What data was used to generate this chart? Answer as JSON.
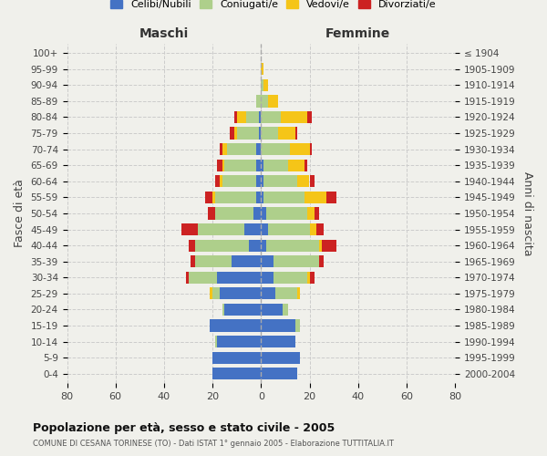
{
  "age_groups": [
    "0-4",
    "5-9",
    "10-14",
    "15-19",
    "20-24",
    "25-29",
    "30-34",
    "35-39",
    "40-44",
    "45-49",
    "50-54",
    "55-59",
    "60-64",
    "65-69",
    "70-74",
    "75-79",
    "80-84",
    "85-89",
    "90-94",
    "95-99",
    "100+"
  ],
  "birth_years": [
    "2000-2004",
    "1995-1999",
    "1990-1994",
    "1985-1989",
    "1980-1984",
    "1975-1979",
    "1970-1974",
    "1965-1969",
    "1960-1964",
    "1955-1959",
    "1950-1954",
    "1945-1949",
    "1940-1944",
    "1935-1939",
    "1930-1934",
    "1925-1929",
    "1920-1924",
    "1915-1919",
    "1910-1914",
    "1905-1909",
    "≤ 1904"
  ],
  "males": {
    "celibi": [
      20,
      20,
      18,
      21,
      15,
      17,
      18,
      12,
      5,
      7,
      3,
      2,
      2,
      2,
      2,
      1,
      1,
      0,
      0,
      0,
      0
    ],
    "coniugati": [
      0,
      0,
      1,
      0,
      1,
      3,
      12,
      15,
      22,
      19,
      16,
      17,
      14,
      13,
      12,
      9,
      5,
      2,
      0,
      0,
      0
    ],
    "vedovi": [
      0,
      0,
      0,
      0,
      0,
      1,
      0,
      0,
      0,
      0,
      0,
      1,
      1,
      1,
      2,
      1,
      4,
      0,
      0,
      0,
      0
    ],
    "divorziati": [
      0,
      0,
      0,
      0,
      0,
      0,
      1,
      2,
      3,
      7,
      3,
      3,
      2,
      2,
      1,
      2,
      1,
      0,
      0,
      0,
      0
    ]
  },
  "females": {
    "nubili": [
      15,
      16,
      14,
      14,
      9,
      6,
      5,
      5,
      2,
      3,
      2,
      1,
      1,
      1,
      0,
      0,
      0,
      0,
      0,
      0,
      0
    ],
    "coniugate": [
      0,
      0,
      0,
      2,
      2,
      9,
      14,
      19,
      22,
      17,
      17,
      17,
      14,
      10,
      12,
      7,
      8,
      3,
      1,
      0,
      0
    ],
    "vedove": [
      0,
      0,
      0,
      0,
      0,
      1,
      1,
      0,
      1,
      3,
      3,
      9,
      5,
      7,
      8,
      7,
      11,
      4,
      2,
      1,
      0
    ],
    "divorziate": [
      0,
      0,
      0,
      0,
      0,
      0,
      2,
      2,
      6,
      3,
      2,
      4,
      2,
      1,
      1,
      1,
      2,
      0,
      0,
      0,
      0
    ]
  },
  "colors": {
    "celibi": "#4472C4",
    "coniugati": "#AECF8B",
    "vedovi": "#F5C518",
    "divorziati": "#CC2222"
  },
  "xlim": 80,
  "title": "Popolazione per età, sesso e stato civile - 2005",
  "subtitle": "COMUNE DI CESANA TORINESE (TO) - Dati ISTAT 1° gennaio 2005 - Elaborazione TUTTITALIA.IT",
  "ylabel_left": "Fasce di età",
  "ylabel_right": "Anni di nascita",
  "xlabel_male": "Maschi",
  "xlabel_female": "Femmine",
  "legend_labels": [
    "Celibi/Nubili",
    "Coniugati/e",
    "Vedovi/e",
    "Divorziati/e"
  ],
  "bg_color": "#f0f0eb"
}
